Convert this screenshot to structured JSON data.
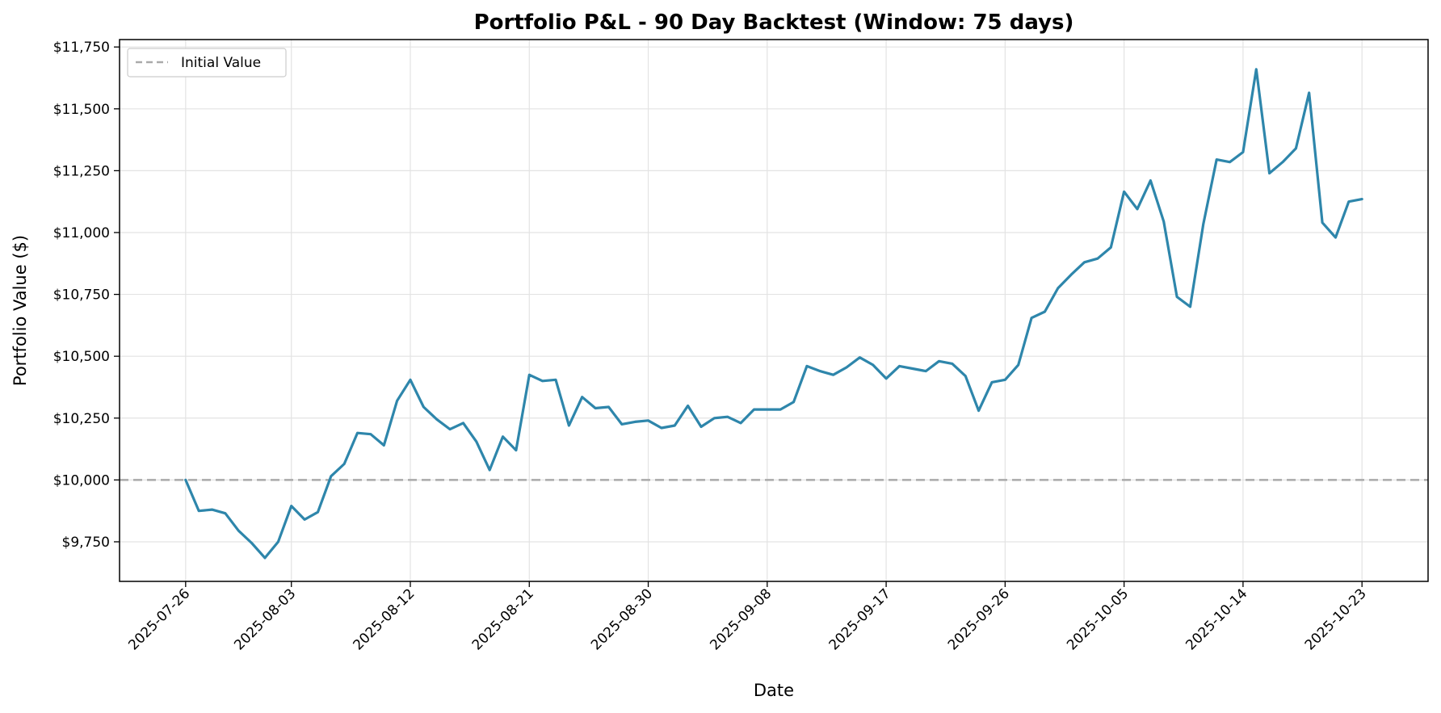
{
  "chart_data": {
    "type": "line",
    "title": "Portfolio P&L - 90 Day Backtest (Window: 75 days)",
    "xlabel": "Date",
    "ylabel": "Portfolio Value ($)",
    "x_start": "2025-07-26",
    "x_end": "2025-10-23",
    "xlim": [
      "2025-07-21",
      "2025-10-28"
    ],
    "ylim": [
      9590,
      11780
    ],
    "x_ticks": [
      "2025-07-26",
      "2025-08-03",
      "2025-08-12",
      "2025-08-21",
      "2025-08-30",
      "2025-09-08",
      "2025-09-17",
      "2025-09-26",
      "2025-10-05",
      "2025-10-14",
      "2025-10-23"
    ],
    "y_ticks": [
      9750,
      10000,
      10250,
      10500,
      10750,
      11000,
      11250,
      11500,
      11750
    ],
    "y_tick_labels": [
      "$9,750",
      "$10,000",
      "$10,250",
      "$10,500",
      "$10,750",
      "$11,000",
      "$11,250",
      "$11,500",
      "$11,750"
    ],
    "grid": true,
    "legend": {
      "placement": "top-left",
      "entries": [
        {
          "label": "Initial Value",
          "style": "dashed",
          "color": "#aaaaaa"
        }
      ]
    },
    "reference_line": {
      "label": "Initial Value",
      "y": 10000,
      "style": "dashed",
      "color": "#aaaaaa"
    },
    "series": [
      {
        "color": "#2e86ab",
        "values": [
          10000,
          9875,
          9880,
          9865,
          9795,
          9745,
          9685,
          9750,
          9895,
          9840,
          9870,
          10015,
          10065,
          10190,
          10185,
          10140,
          10320,
          10405,
          10295,
          10245,
          10205,
          10230,
          10155,
          10040,
          10175,
          10120,
          10425,
          10400,
          10405,
          10220,
          10335,
          10290,
          10295,
          10225,
          10235,
          10240,
          10210,
          10220,
          10300,
          10215,
          10250,
          10255,
          10230,
          10285,
          10285,
          10285,
          10315,
          10460,
          10440,
          10425,
          10455,
          10495,
          10465,
          10410,
          10460,
          10450,
          10440,
          10480,
          10470,
          10420,
          10280,
          10395,
          10405,
          10465,
          10655,
          10680,
          10775,
          10830,
          10880,
          10895,
          10940,
          11165,
          11095,
          11210,
          11045,
          10740,
          10700,
          11035,
          11295,
          11285,
          11325,
          11660,
          11240,
          11285,
          11340,
          11565,
          11040,
          10980,
          11125,
          11135
        ]
      }
    ]
  }
}
